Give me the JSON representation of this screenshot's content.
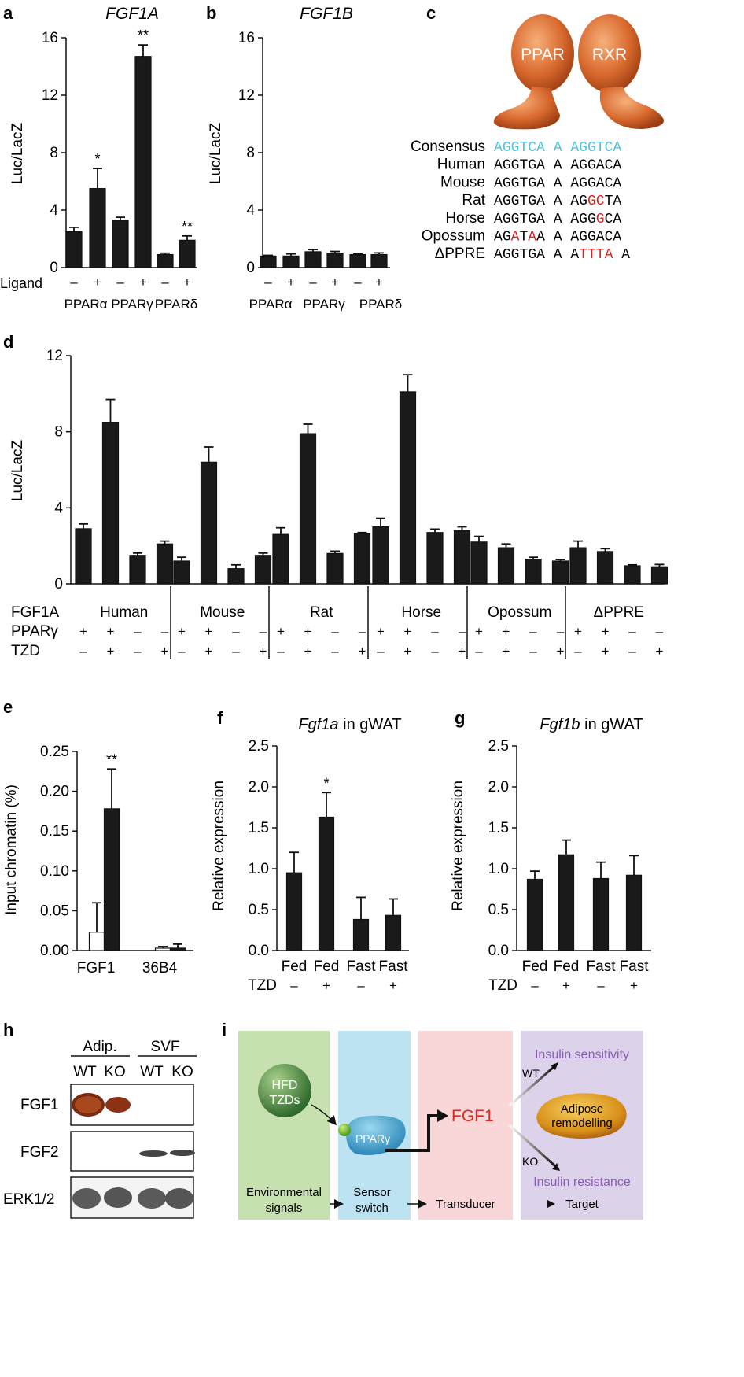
{
  "panels": {
    "a": {
      "letter": "a",
      "title": "FGF1A",
      "ylabel": "Luc/LacZ",
      "ticks": [
        "0",
        "4",
        "8",
        "12",
        "16"
      ],
      "ligand_label": "Ligand",
      "signs": [
        "–",
        "+",
        "–",
        "+",
        "–",
        "+"
      ],
      "groups": [
        "PPARα",
        "PPARγ",
        "PPARδ"
      ],
      "stars": [
        "",
        "*",
        "",
        "**",
        "",
        "**"
      ]
    },
    "b": {
      "letter": "b",
      "title": "FGF1B",
      "ylabel": "Luc/LacZ",
      "ticks": [
        "0",
        "4",
        "8",
        "12",
        "16"
      ],
      "signs": [
        "–",
        "+",
        "–",
        "+",
        "–",
        "+"
      ],
      "groups": [
        "PPARα",
        "PPARγ",
        "PPARδ"
      ]
    },
    "c": {
      "letter": "c",
      "protein_left": "PPAR",
      "protein_right": "RXR",
      "rows": [
        {
          "name": "Consensus",
          "seq": "AGGTCA A AGGTCA"
        },
        {
          "name": "Human",
          "seq": "AGGTGA A AGGACA"
        },
        {
          "name": "Mouse",
          "seq": "AGGTGA A AGGACA"
        },
        {
          "name": "Rat",
          "seq": "AGGTGA A AGGCTA"
        },
        {
          "name": "Horse",
          "seq": "AGGTGA A AGGGCA"
        },
        {
          "name": "Opossum",
          "seq": "AGATAA A AGGACA"
        },
        {
          "name": "ΔPPRE",
          "seq": "AGGTGA A ATTTA A"
        }
      ]
    },
    "d": {
      "letter": "d",
      "ylabel": "Luc/LacZ",
      "ticks": [
        "0",
        "4",
        "8",
        "12"
      ],
      "row_labels": [
        "FGF1A",
        "PPARγ",
        "TZD"
      ],
      "species": [
        "Human",
        "Mouse",
        "Rat",
        "Horse",
        "Opossum",
        "ΔPPRE"
      ],
      "pparg": [
        "+",
        "+",
        "–",
        "–"
      ],
      "tzd": [
        "–",
        "+",
        "–",
        "+"
      ]
    },
    "e": {
      "letter": "e",
      "ylabel": "Input chromatin (%)",
      "ticks": [
        "0.00",
        "0.05",
        "0.10",
        "0.15",
        "0.20",
        "0.25"
      ],
      "groups": [
        "FGF1",
        "36B4"
      ],
      "stars": "**"
    },
    "f": {
      "letter": "f",
      "title_italic": "Fgf1a",
      "title_rest": " in gWAT",
      "ylabel": "Relative expression",
      "ticks": [
        "0.0",
        "0.5",
        "1.0",
        "1.5",
        "2.0",
        "2.5"
      ],
      "cats": [
        "Fed",
        "Fed",
        "Fast",
        "Fast"
      ],
      "tzd_label": "TZD",
      "tzd": [
        "–",
        "+",
        "–",
        "+"
      ],
      "stars": [
        "",
        "*",
        "",
        ""
      ]
    },
    "g": {
      "letter": "g",
      "title_italic": "Fgf1b",
      "title_rest": " in gWAT",
      "ylabel": "Relative expression",
      "ticks": [
        "0.0",
        "0.5",
        "1.0",
        "1.5",
        "2.0",
        "2.5"
      ],
      "cats": [
        "Fed",
        "Fed",
        "Fast",
        "Fast"
      ],
      "tzd_label": "TZD",
      "tzd": [
        "–",
        "+",
        "–",
        "+"
      ]
    },
    "h": {
      "letter": "h",
      "groups": [
        "Adip.",
        "SVF"
      ],
      "lanes": [
        "WT",
        "KO",
        "WT",
        "KO"
      ],
      "blots": [
        "FGF1",
        "FGF2",
        "ERK1/2"
      ]
    },
    "i": {
      "letter": "i",
      "hfd": "HFD",
      "tzds": "TZDs",
      "pparg": "PPARγ",
      "fgf1": "FGF1",
      "insulin_sensitivity": "Insulin sensitivity",
      "insulin_resistance": "Insulin resistance",
      "adipose": "Adipose",
      "remodelling": "remodelling",
      "wt": "WT",
      "ko": "KO",
      "cols": [
        "Environmental",
        "signals",
        "Sensor",
        "switch",
        "Transducer",
        "Target"
      ]
    }
  },
  "colors": {
    "bar": "#1a1a1a",
    "consensus": "#4fc3e0",
    "mutation": "#e0201a",
    "fgf1": "#e8251c",
    "purple": "#8b5db8"
  },
  "chart_data": [
    {
      "type": "bar",
      "title": "FGF1A",
      "ylabel": "Luc/LacZ",
      "ylim": [
        0,
        16
      ],
      "categories": [
        "PPARα –",
        "PPARα +",
        "PPARγ –",
        "PPARγ +",
        "PPARδ –",
        "PPARδ +"
      ],
      "values": [
        2.5,
        5.5,
        3.3,
        14.7,
        0.9,
        1.9
      ],
      "errors": [
        0.3,
        1.4,
        0.2,
        0.8,
        0.1,
        0.3
      ]
    },
    {
      "type": "bar",
      "title": "FGF1B",
      "ylabel": "Luc/LacZ",
      "ylim": [
        0,
        16
      ],
      "categories": [
        "PPARα –",
        "PPARα +",
        "PPARγ –",
        "PPARγ +",
        "PPARδ –",
        "PPARδ +"
      ],
      "values": [
        0.8,
        0.8,
        1.1,
        1.0,
        0.9,
        0.9
      ],
      "errors": [
        0.05,
        0.15,
        0.15,
        0.12,
        0.05,
        0.12
      ]
    },
    {
      "type": "bar",
      "ylabel": "Luc/LacZ",
      "ylim": [
        0,
        12
      ],
      "categories": [
        "Human",
        "Mouse",
        "Rat",
        "Horse",
        "Opossum",
        "ΔPPRE"
      ],
      "series": [
        {
          "values": [
            2.9,
            1.2,
            2.6,
            3.0,
            2.2,
            1.9
          ],
          "errors": [
            0.25,
            0.2,
            0.35,
            0.45,
            0.3,
            0.35
          ]
        },
        {
          "values": [
            8.5,
            6.4,
            7.9,
            10.1,
            1.9,
            1.7
          ],
          "errors": [
            1.2,
            0.8,
            0.5,
            0.9,
            0.2,
            0.15
          ]
        },
        {
          "values": [
            1.5,
            0.8,
            1.6,
            2.7,
            1.3,
            0.95
          ],
          "errors": [
            0.12,
            0.2,
            0.12,
            0.18,
            0.1,
            0.05
          ]
        },
        {
          "values": [
            2.1,
            1.5,
            2.65,
            2.8,
            1.2,
            0.9
          ],
          "errors": [
            0.15,
            0.12,
            0.05,
            0.2,
            0.08,
            0.12
          ]
        }
      ]
    },
    {
      "type": "bar",
      "ylabel": "Input chromatin (%)",
      "ylim": [
        0,
        0.25
      ],
      "categories": [
        "FGF1",
        "36B4"
      ],
      "series": [
        {
          "values": [
            0.023,
            0.003
          ],
          "errors": [
            0.037,
            0.002
          ]
        },
        {
          "values": [
            0.178,
            0.003
          ],
          "errors": [
            0.05,
            0.005
          ]
        }
      ]
    },
    {
      "type": "bar",
      "title": "Fgf1a in gWAT",
      "ylabel": "Relative expression",
      "ylim": [
        0,
        2.5
      ],
      "categories": [
        "Fed –",
        "Fed +",
        "Fast –",
        "Fast +"
      ],
      "values": [
        0.95,
        1.63,
        0.38,
        0.43
      ],
      "errors": [
        0.25,
        0.3,
        0.27,
        0.2
      ]
    },
    {
      "type": "bar",
      "title": "Fgf1b in gWAT",
      "ylabel": "Relative expression",
      "ylim": [
        0,
        2.5
      ],
      "categories": [
        "Fed –",
        "Fed +",
        "Fast –",
        "Fast +"
      ],
      "values": [
        0.87,
        1.17,
        0.88,
        0.92
      ],
      "errors": [
        0.1,
        0.18,
        0.2,
        0.24
      ]
    }
  ]
}
